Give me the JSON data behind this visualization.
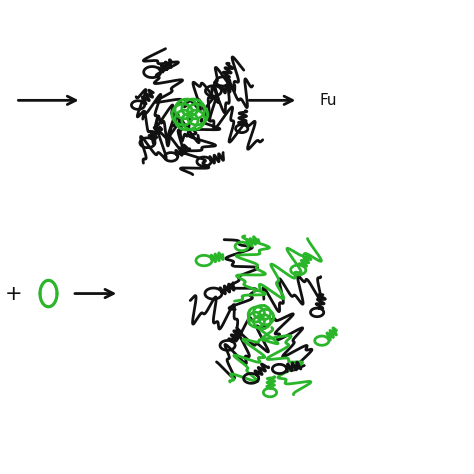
{
  "bg_color": "#ffffff",
  "black_color": "#111111",
  "green_color": "#2ab52a",
  "red_color": "#cc1111",
  "lw": 2.0,
  "figsize": [
    4.74,
    4.74
  ],
  "dpi": 100
}
